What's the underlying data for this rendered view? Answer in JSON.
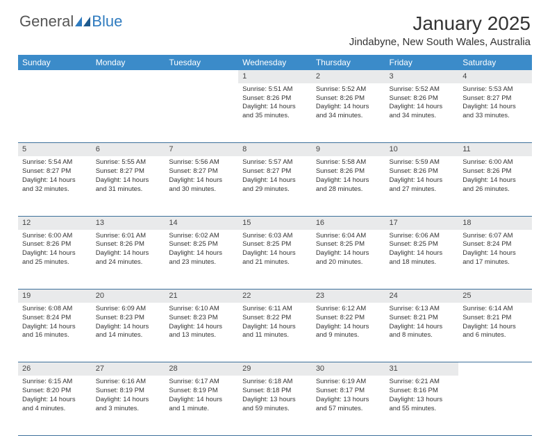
{
  "brand": {
    "general": "General",
    "blue": "Blue"
  },
  "title": "January 2025",
  "location": "Jindabyne, New South Wales, Australia",
  "header_bg": "#3b8bc9",
  "daynum_bg": "#e9eaeb",
  "border_color": "#3b6f9a",
  "weekdays": [
    "Sunday",
    "Monday",
    "Tuesday",
    "Wednesday",
    "Thursday",
    "Friday",
    "Saturday"
  ],
  "labels": {
    "sunrise": "Sunrise:",
    "sunset": "Sunset:",
    "daylight": "Daylight:"
  },
  "weeks": [
    {
      "nums": [
        "",
        "",
        "",
        "1",
        "2",
        "3",
        "4"
      ],
      "cells": [
        null,
        null,
        null,
        {
          "sunrise": "5:51 AM",
          "sunset": "8:26 PM",
          "daylight": "14 hours and 35 minutes."
        },
        {
          "sunrise": "5:52 AM",
          "sunset": "8:26 PM",
          "daylight": "14 hours and 34 minutes."
        },
        {
          "sunrise": "5:52 AM",
          "sunset": "8:26 PM",
          "daylight": "14 hours and 34 minutes."
        },
        {
          "sunrise": "5:53 AM",
          "sunset": "8:27 PM",
          "daylight": "14 hours and 33 minutes."
        }
      ]
    },
    {
      "nums": [
        "5",
        "6",
        "7",
        "8",
        "9",
        "10",
        "11"
      ],
      "cells": [
        {
          "sunrise": "5:54 AM",
          "sunset": "8:27 PM",
          "daylight": "14 hours and 32 minutes."
        },
        {
          "sunrise": "5:55 AM",
          "sunset": "8:27 PM",
          "daylight": "14 hours and 31 minutes."
        },
        {
          "sunrise": "5:56 AM",
          "sunset": "8:27 PM",
          "daylight": "14 hours and 30 minutes."
        },
        {
          "sunrise": "5:57 AM",
          "sunset": "8:27 PM",
          "daylight": "14 hours and 29 minutes."
        },
        {
          "sunrise": "5:58 AM",
          "sunset": "8:26 PM",
          "daylight": "14 hours and 28 minutes."
        },
        {
          "sunrise": "5:59 AM",
          "sunset": "8:26 PM",
          "daylight": "14 hours and 27 minutes."
        },
        {
          "sunrise": "6:00 AM",
          "sunset": "8:26 PM",
          "daylight": "14 hours and 26 minutes."
        }
      ]
    },
    {
      "nums": [
        "12",
        "13",
        "14",
        "15",
        "16",
        "17",
        "18"
      ],
      "cells": [
        {
          "sunrise": "6:00 AM",
          "sunset": "8:26 PM",
          "daylight": "14 hours and 25 minutes."
        },
        {
          "sunrise": "6:01 AM",
          "sunset": "8:26 PM",
          "daylight": "14 hours and 24 minutes."
        },
        {
          "sunrise": "6:02 AM",
          "sunset": "8:25 PM",
          "daylight": "14 hours and 23 minutes."
        },
        {
          "sunrise": "6:03 AM",
          "sunset": "8:25 PM",
          "daylight": "14 hours and 21 minutes."
        },
        {
          "sunrise": "6:04 AM",
          "sunset": "8:25 PM",
          "daylight": "14 hours and 20 minutes."
        },
        {
          "sunrise": "6:06 AM",
          "sunset": "8:25 PM",
          "daylight": "14 hours and 18 minutes."
        },
        {
          "sunrise": "6:07 AM",
          "sunset": "8:24 PM",
          "daylight": "14 hours and 17 minutes."
        }
      ]
    },
    {
      "nums": [
        "19",
        "20",
        "21",
        "22",
        "23",
        "24",
        "25"
      ],
      "cells": [
        {
          "sunrise": "6:08 AM",
          "sunset": "8:24 PM",
          "daylight": "14 hours and 16 minutes."
        },
        {
          "sunrise": "6:09 AM",
          "sunset": "8:23 PM",
          "daylight": "14 hours and 14 minutes."
        },
        {
          "sunrise": "6:10 AM",
          "sunset": "8:23 PM",
          "daylight": "14 hours and 13 minutes."
        },
        {
          "sunrise": "6:11 AM",
          "sunset": "8:22 PM",
          "daylight": "14 hours and 11 minutes."
        },
        {
          "sunrise": "6:12 AM",
          "sunset": "8:22 PM",
          "daylight": "14 hours and 9 minutes."
        },
        {
          "sunrise": "6:13 AM",
          "sunset": "8:21 PM",
          "daylight": "14 hours and 8 minutes."
        },
        {
          "sunrise": "6:14 AM",
          "sunset": "8:21 PM",
          "daylight": "14 hours and 6 minutes."
        }
      ]
    },
    {
      "nums": [
        "26",
        "27",
        "28",
        "29",
        "30",
        "31",
        ""
      ],
      "cells": [
        {
          "sunrise": "6:15 AM",
          "sunset": "8:20 PM",
          "daylight": "14 hours and 4 minutes."
        },
        {
          "sunrise": "6:16 AM",
          "sunset": "8:19 PM",
          "daylight": "14 hours and 3 minutes."
        },
        {
          "sunrise": "6:17 AM",
          "sunset": "8:19 PM",
          "daylight": "14 hours and 1 minute."
        },
        {
          "sunrise": "6:18 AM",
          "sunset": "8:18 PM",
          "daylight": "13 hours and 59 minutes."
        },
        {
          "sunrise": "6:19 AM",
          "sunset": "8:17 PM",
          "daylight": "13 hours and 57 minutes."
        },
        {
          "sunrise": "6:21 AM",
          "sunset": "8:16 PM",
          "daylight": "13 hours and 55 minutes."
        },
        null
      ]
    }
  ]
}
